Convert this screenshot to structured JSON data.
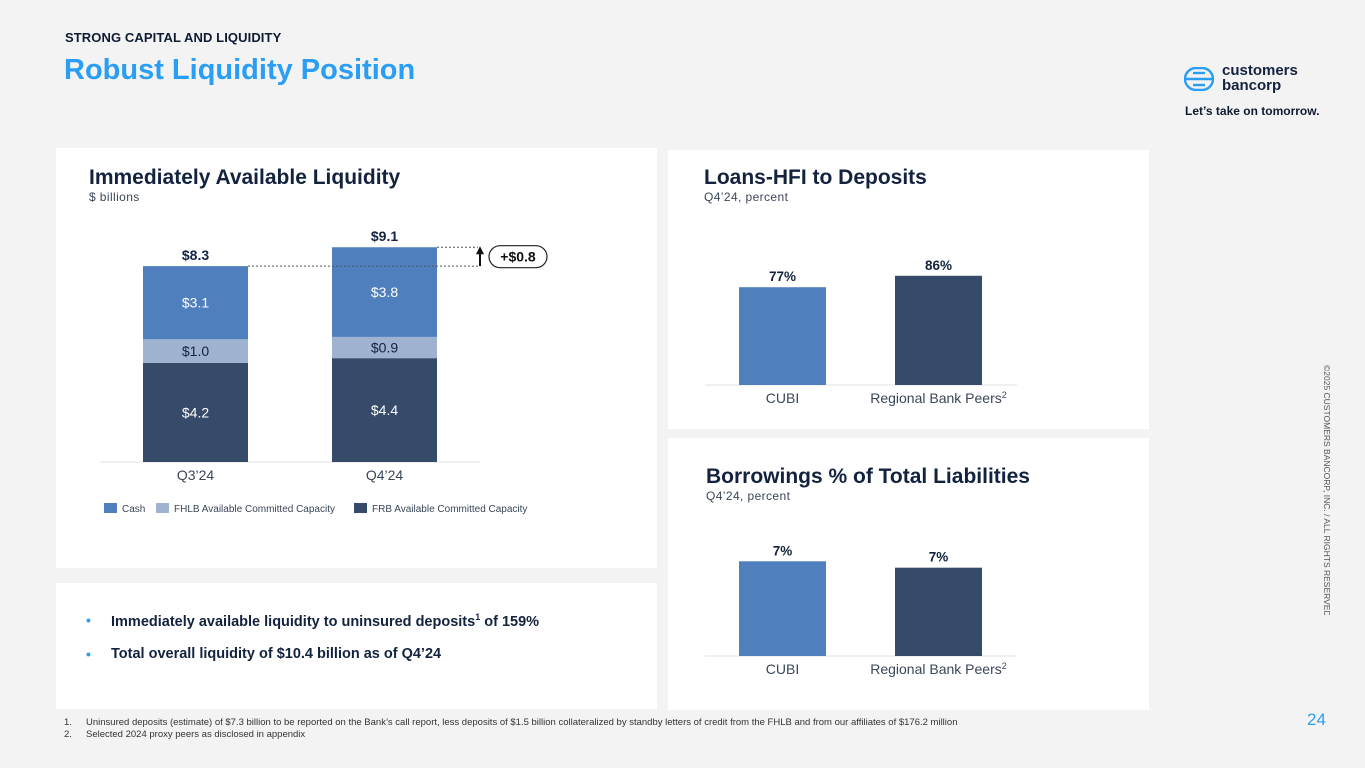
{
  "header": {
    "eyebrow": "STRONG CAPITAL AND LIQUIDITY",
    "title": "Robust Liquidity Position"
  },
  "brand": {
    "name_line1": "customers",
    "name_line2": "bancorp",
    "tagline": "Let’s take on tomorrow."
  },
  "colors": {
    "accent": "#2a9df4",
    "cash": "#4f7fbd",
    "fhlb": "#9fb2cf",
    "frb": "#364a6a",
    "navy": "#13233f"
  },
  "liquidity_panel": {
    "title": "Immediately Available Liquidity",
    "subtitle": "$ billions",
    "increase_label": "+$0.8"
  },
  "loans_panel": {
    "title": "Loans-HFI to Deposits",
    "subtitle": "Q4’24, percent"
  },
  "borrowings_panel": {
    "title": "Borrowings % of Total Liabilities",
    "subtitle": "Q4’24, percent"
  },
  "chart_data": [
    {
      "type": "bar",
      "stacked": true,
      "title": "Immediately Available Liquidity",
      "unit": "$ billions",
      "categories": [
        "Q3’24",
        "Q4’24"
      ],
      "totals": [
        8.3,
        9.1
      ],
      "total_labels": [
        "$8.3",
        "$9.1"
      ],
      "series": [
        {
          "name": "FRB Available Committed Capacity",
          "values": [
            4.2,
            4.4
          ],
          "labels": [
            "$4.2",
            "$4.4"
          ],
          "color": "#364a6a"
        },
        {
          "name": "FHLB Available Committed Capacity",
          "values": [
            1.0,
            0.9
          ],
          "labels": [
            "$1.0",
            "$0.9"
          ],
          "color": "#9fb2cf"
        },
        {
          "name": "Cash",
          "values": [
            3.1,
            3.8
          ],
          "labels": [
            "$3.1",
            "$3.8"
          ],
          "color": "#4f7fbd"
        }
      ],
      "legend": [
        "Cash",
        "FHLB Available Committed Capacity",
        "FRB Available Committed Capacity"
      ],
      "ylim": [
        0,
        9.5
      ]
    },
    {
      "type": "bar",
      "title": "Loans-HFI to Deposits",
      "categories": [
        "CUBI",
        "Regional Bank Peers"
      ],
      "category_sup": [
        "",
        "2"
      ],
      "values": [
        77,
        86
      ],
      "labels": [
        "77%",
        "86%"
      ],
      "colors": [
        "#4f7fbd",
        "#364a6a"
      ],
      "ylim": [
        0,
        100
      ]
    },
    {
      "type": "bar",
      "title": "Borrowings % of Total Liabilities",
      "categories": [
        "CUBI",
        "Regional Bank Peers"
      ],
      "category_sup": [
        "",
        "2"
      ],
      "values": [
        7.4,
        6.9
      ],
      "labels": [
        "7%",
        "7%"
      ],
      "colors": [
        "#4f7fbd",
        "#364a6a"
      ],
      "ylim": [
        0,
        8.5
      ]
    }
  ],
  "bullets": [
    {
      "text": "Immediately available liquidity to uninsured deposits",
      "sup": "1",
      "tail": " of 159%"
    },
    {
      "text": "Total overall liquidity of $10.4 billion as of Q4’24",
      "sup": "",
      "tail": ""
    }
  ],
  "footnotes": [
    {
      "num": "1.",
      "text": "Uninsured deposits (estimate) of $7.3 billion to be reported on the Bank’s call report, less deposits of $1.5 billion collateralized by standby letters of credit from the FHLB and from our affiliates of $176.2 million"
    },
    {
      "num": "2.",
      "text": "Selected 2024 proxy peers as disclosed in appendix"
    }
  ],
  "copyright": "©2025 CUSTOMERS BANCORP, INC. / ALL RIGHTS RESERVED",
  "page_number": "24"
}
